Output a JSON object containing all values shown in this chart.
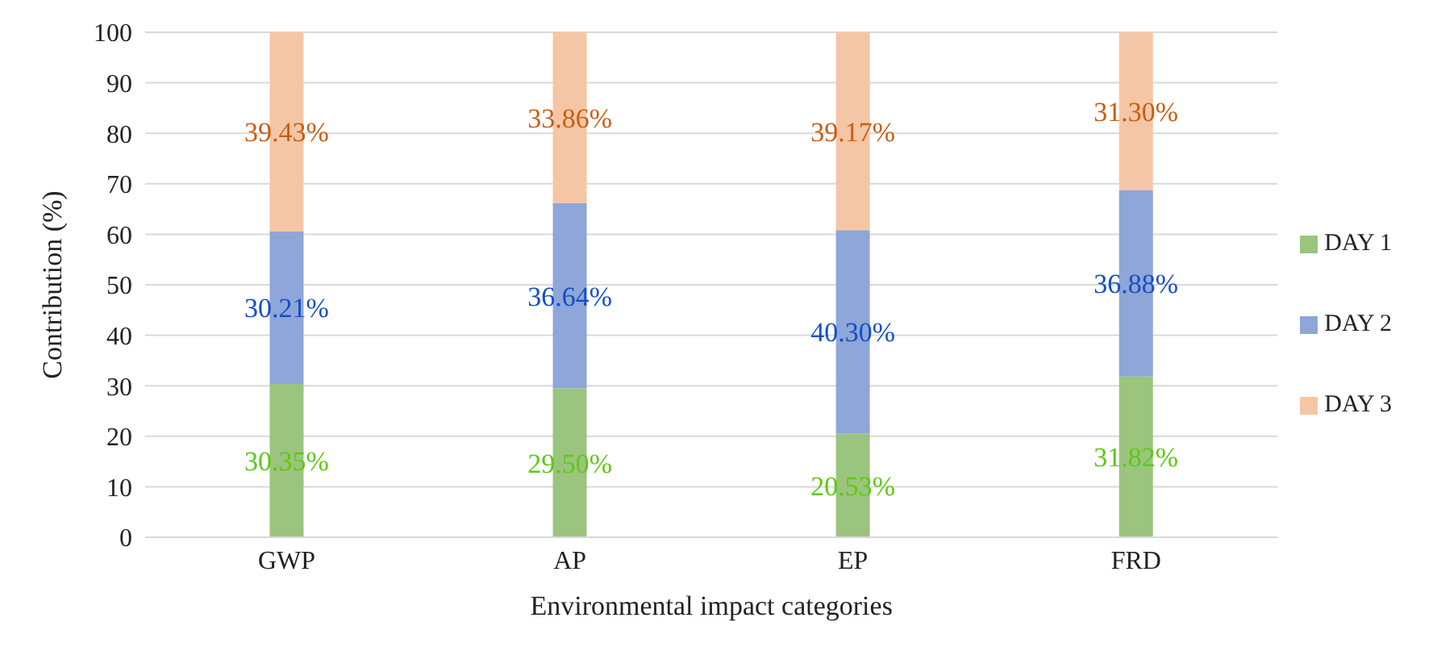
{
  "chart_data": {
    "type": "bar",
    "stacked": true,
    "xlabel": "Environmental impact categories",
    "ylabel": "Contribution (%)",
    "categories": [
      "GWP",
      "AP",
      "EP",
      "FRD"
    ],
    "series": [
      {
        "name": "DAY 1",
        "color": "#9bc47e",
        "values": [
          30.35,
          29.5,
          20.53,
          31.82
        ],
        "value_labels": [
          "30.35%",
          "29.50%",
          "20.53%",
          "31.82%"
        ]
      },
      {
        "name": "DAY 2",
        "color": "#8ea6d8",
        "values": [
          30.21,
          36.64,
          40.3,
          36.88
        ],
        "value_labels": [
          "30.21%",
          "36.64%",
          "40.30%",
          "36.88%"
        ]
      },
      {
        "name": "DAY 3",
        "color": "#f5c6a5",
        "values": [
          39.43,
          33.86,
          39.17,
          31.3
        ],
        "value_labels": [
          "39.43%",
          "33.86%",
          "39.17%",
          "31.30%"
        ]
      }
    ],
    "ylim": [
      0,
      100
    ],
    "yticks": [
      0,
      10,
      20,
      30,
      40,
      50,
      60,
      70,
      80,
      90,
      100
    ],
    "grid": "y",
    "legend": "right"
  }
}
